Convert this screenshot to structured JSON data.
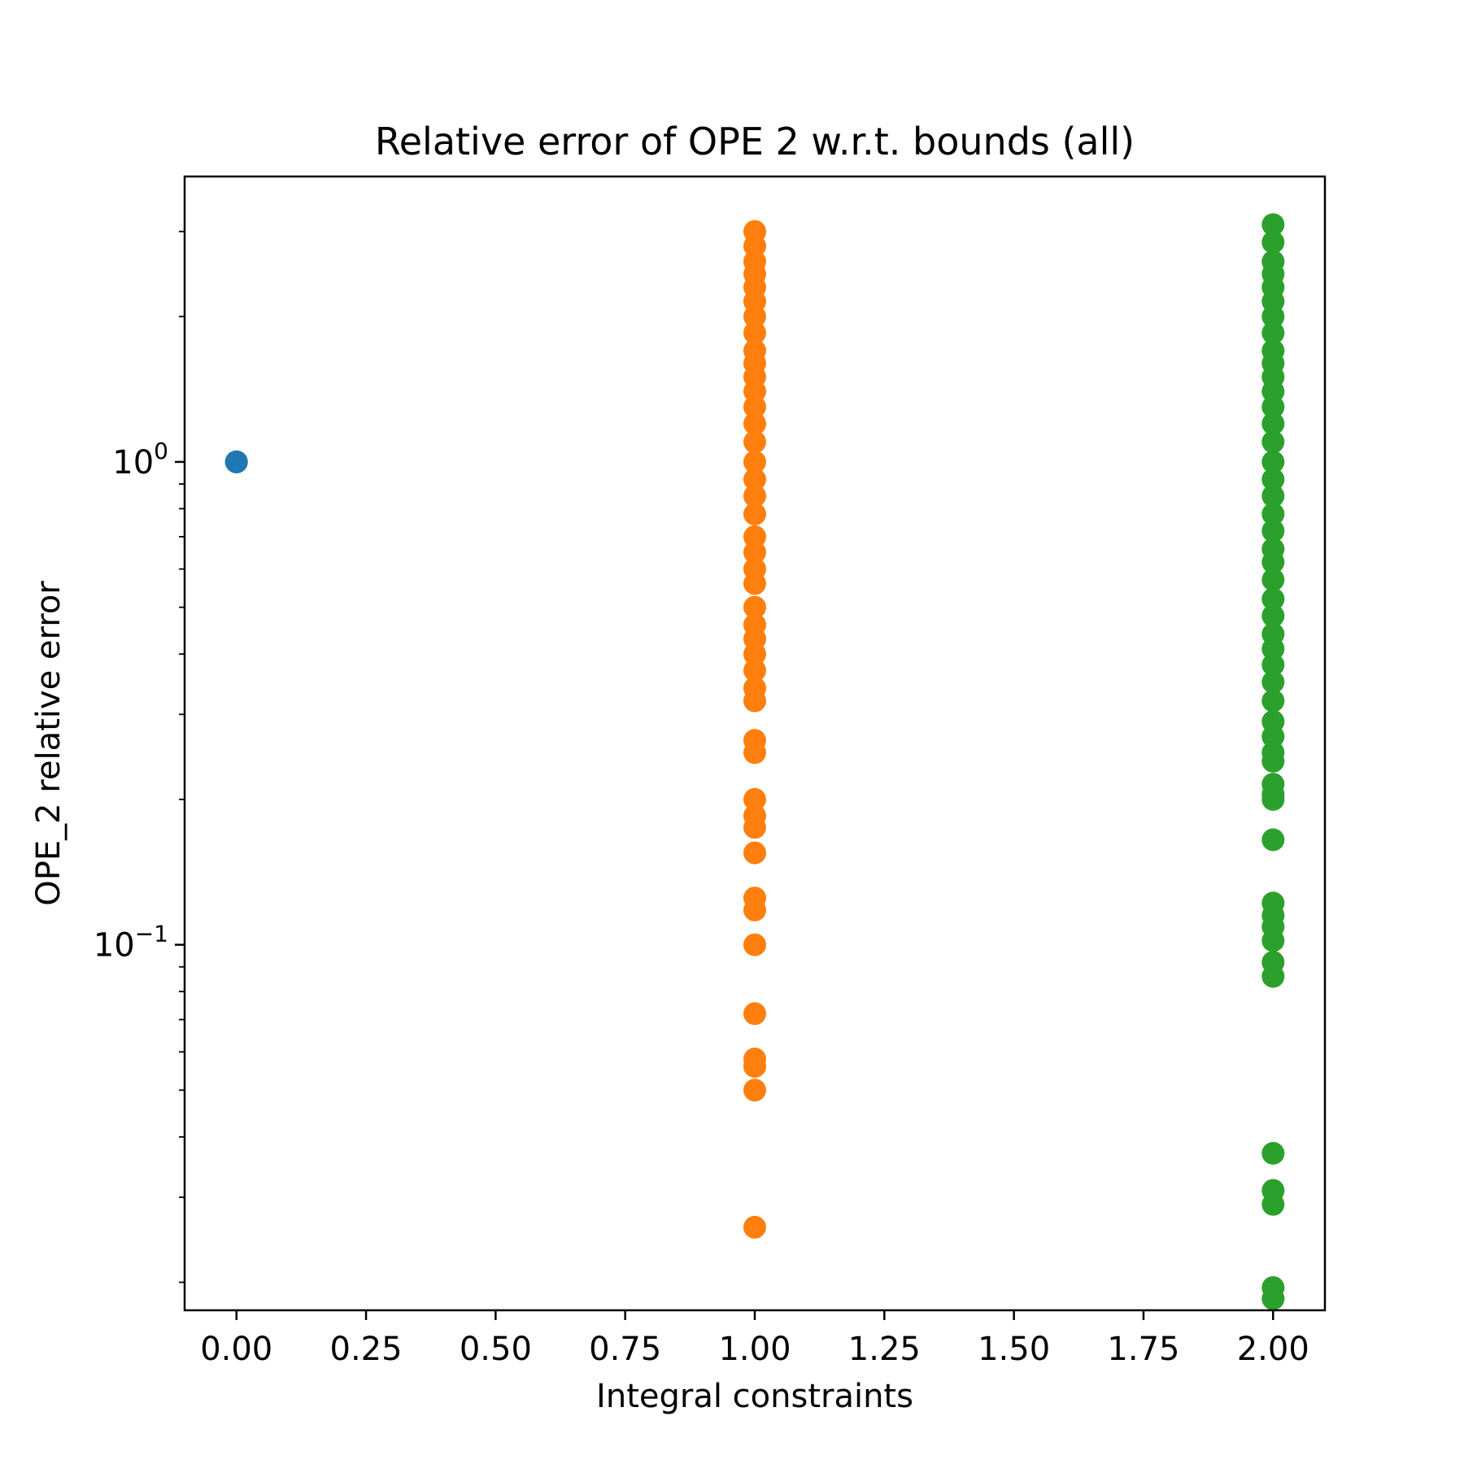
{
  "chart_data": {
    "type": "scatter",
    "title": "Relative error of OPE 2 w.r.t. bounds (all)",
    "xlabel": "Integral constraints",
    "ylabel": "OPE_2 relative error",
    "xlim": [
      -0.1,
      2.1
    ],
    "ylim": [
      0.0175,
      3.9
    ],
    "yscale": "log",
    "grid": false,
    "x_ticks": [
      {
        "value": 0.0,
        "label": "0.00"
      },
      {
        "value": 0.25,
        "label": "0.25"
      },
      {
        "value": 0.5,
        "label": "0.50"
      },
      {
        "value": 0.75,
        "label": "0.75"
      },
      {
        "value": 1.0,
        "label": "1.00"
      },
      {
        "value": 1.25,
        "label": "1.25"
      },
      {
        "value": 1.5,
        "label": "1.50"
      },
      {
        "value": 1.75,
        "label": "1.75"
      },
      {
        "value": 2.0,
        "label": "2.00"
      }
    ],
    "y_major_ticks": [
      {
        "value": 1.0,
        "base": "10",
        "exp": "0"
      },
      {
        "value": 0.1,
        "base": "10",
        "exp": "−1"
      }
    ],
    "y_minor_ticks": [
      0.02,
      0.03,
      0.04,
      0.05,
      0.06,
      0.07,
      0.08,
      0.09,
      0.2,
      0.3,
      0.4,
      0.5,
      0.6,
      0.7,
      0.8,
      0.9,
      2,
      3
    ],
    "series": [
      {
        "color": "#1f77b4",
        "points": [
          [
            0,
            1.0
          ],
          [
            0,
            1.0
          ],
          [
            0,
            1.0
          ]
        ]
      },
      {
        "color": "#ff7f0e",
        "points": [
          [
            1,
            3.0
          ],
          [
            1,
            2.8
          ],
          [
            1,
            2.6
          ],
          [
            1,
            2.45
          ],
          [
            1,
            2.3
          ],
          [
            1,
            2.15
          ],
          [
            1,
            2.0
          ],
          [
            1,
            1.85
          ],
          [
            1,
            1.7
          ],
          [
            1,
            1.6
          ],
          [
            1,
            1.5
          ],
          [
            1,
            1.4
          ],
          [
            1,
            1.3
          ],
          [
            1,
            1.2
          ],
          [
            1,
            1.1
          ],
          [
            1,
            1.0
          ],
          [
            1,
            0.92
          ],
          [
            1,
            0.85
          ],
          [
            1,
            0.78
          ],
          [
            1,
            0.7
          ],
          [
            1,
            0.65
          ],
          [
            1,
            0.6
          ],
          [
            1,
            0.56
          ],
          [
            1,
            0.5
          ],
          [
            1,
            0.46
          ],
          [
            1,
            0.43
          ],
          [
            1,
            0.4
          ],
          [
            1,
            0.37
          ],
          [
            1,
            0.34
          ],
          [
            1,
            0.32
          ],
          [
            1,
            0.265
          ],
          [
            1,
            0.25
          ],
          [
            1,
            0.2
          ],
          [
            1,
            0.185
          ],
          [
            1,
            0.175
          ],
          [
            1,
            0.155
          ],
          [
            1,
            0.125
          ],
          [
            1,
            0.118
          ],
          [
            1,
            0.1
          ],
          [
            1,
            0.072
          ],
          [
            1,
            0.058
          ],
          [
            1,
            0.056
          ],
          [
            1,
            0.05
          ],
          [
            1,
            0.026
          ]
        ]
      },
      {
        "color": "#2ca02c",
        "points": [
          [
            2,
            3.1
          ],
          [
            2,
            2.85
          ],
          [
            2,
            2.6
          ],
          [
            2,
            2.45
          ],
          [
            2,
            2.3
          ],
          [
            2,
            2.15
          ],
          [
            2,
            2.0
          ],
          [
            2,
            1.85
          ],
          [
            2,
            1.7
          ],
          [
            2,
            1.6
          ],
          [
            2,
            1.5
          ],
          [
            2,
            1.4
          ],
          [
            2,
            1.3
          ],
          [
            2,
            1.2
          ],
          [
            2,
            1.1
          ],
          [
            2,
            1.0
          ],
          [
            2,
            0.92
          ],
          [
            2,
            0.85
          ],
          [
            2,
            0.78
          ],
          [
            2,
            0.72
          ],
          [
            2,
            0.66
          ],
          [
            2,
            0.62
          ],
          [
            2,
            0.57
          ],
          [
            2,
            0.52
          ],
          [
            2,
            0.48
          ],
          [
            2,
            0.44
          ],
          [
            2,
            0.41
          ],
          [
            2,
            0.38
          ],
          [
            2,
            0.35
          ],
          [
            2,
            0.32
          ],
          [
            2,
            0.29
          ],
          [
            2,
            0.27
          ],
          [
            2,
            0.25
          ],
          [
            2,
            0.24
          ],
          [
            2,
            0.215
          ],
          [
            2,
            0.205
          ],
          [
            2,
            0.2
          ],
          [
            2,
            0.165
          ],
          [
            2,
            0.122
          ],
          [
            2,
            0.115
          ],
          [
            2,
            0.109
          ],
          [
            2,
            0.102
          ],
          [
            2,
            0.092
          ],
          [
            2,
            0.086
          ],
          [
            2,
            0.037
          ],
          [
            2,
            0.031
          ],
          [
            2,
            0.029
          ],
          [
            2,
            0.0195
          ],
          [
            2,
            0.0185
          ]
        ]
      }
    ]
  }
}
